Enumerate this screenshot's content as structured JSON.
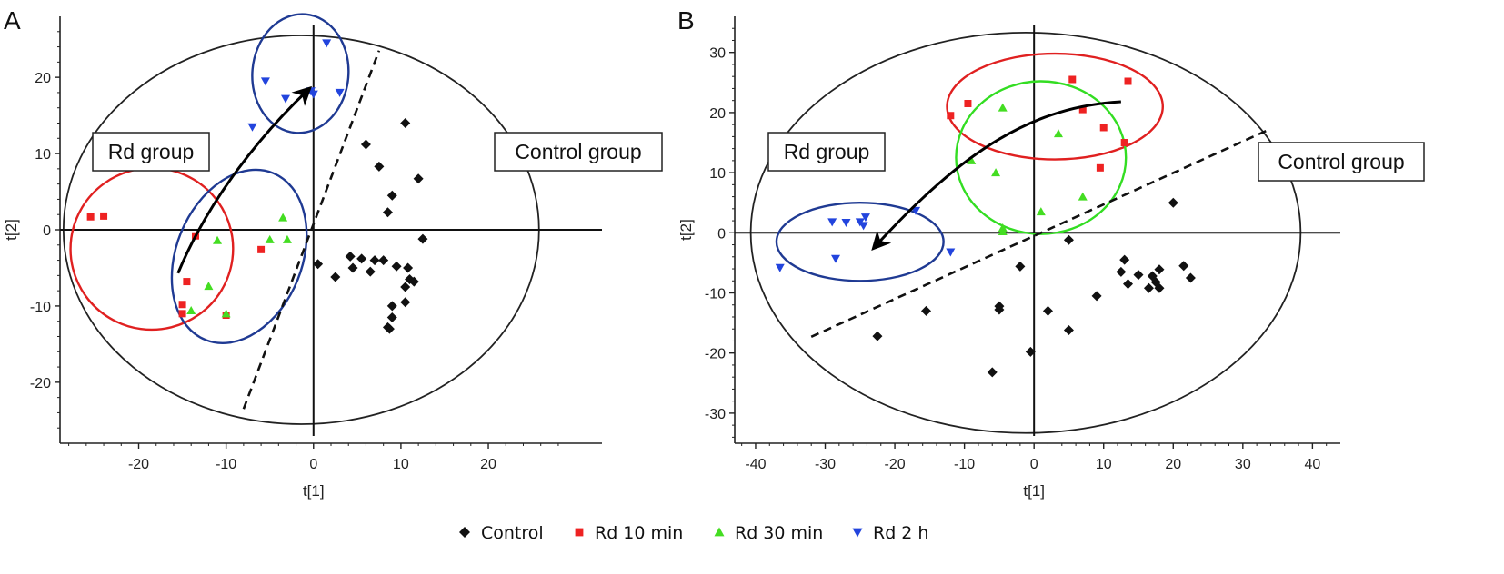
{
  "colors": {
    "control": "#111111",
    "rd10": "#ee2222",
    "rd30": "#44dd22",
    "rd2h": "#2244dd",
    "ellipse_red": "#e02020",
    "ellipse_green": "#33dd22",
    "ellipse_blue": "#1f3a93"
  },
  "legend": {
    "items": [
      {
        "key": "control",
        "label": "Control",
        "marker": "diamond"
      },
      {
        "key": "rd10",
        "label": "Rd 10 min",
        "marker": "square"
      },
      {
        "key": "rd30",
        "label": "Rd 30 min",
        "marker": "triangle-up"
      },
      {
        "key": "rd2h",
        "label": "Rd 2 h",
        "marker": "triangle-down"
      }
    ],
    "placement": "bottom"
  },
  "chart_data": [
    {
      "type": "scatter",
      "panel": "A",
      "xlabel": "t[1]",
      "ylabel": "t[2]",
      "xlim": [
        -29,
        33
      ],
      "ylim": [
        -28,
        28
      ],
      "xticks": [
        -20,
        -10,
        0,
        10,
        20
      ],
      "yticks": [
        -20,
        -10,
        0,
        10,
        20
      ],
      "annotations": [
        "Rd group",
        "Control group"
      ],
      "series": [
        {
          "key": "control",
          "name": "Control",
          "points": [
            [
              10.5,
              14
            ],
            [
              6,
              11.2
            ],
            [
              7.5,
              8.3
            ],
            [
              12,
              6.7
            ],
            [
              9,
              4.5
            ],
            [
              8.5,
              2.3
            ],
            [
              12.5,
              -1.2
            ],
            [
              0.5,
              -4.5
            ],
            [
              2.5,
              -6.2
            ],
            [
              4.2,
              -3.5
            ],
            [
              4.5,
              -5
            ],
            [
              5.5,
              -3.8
            ],
            [
              6.5,
              -5.5
            ],
            [
              7,
              -4
            ],
            [
              8,
              -4
            ],
            [
              9.5,
              -4.8
            ],
            [
              10.8,
              -5
            ],
            [
              11,
              -6.5
            ],
            [
              11.5,
              -6.8
            ],
            [
              10.5,
              -7.5
            ],
            [
              10.5,
              -9.5
            ],
            [
              9,
              -10
            ],
            [
              9,
              -11.5
            ],
            [
              8.5,
              -12.8
            ],
            [
              8.7,
              -13
            ]
          ]
        },
        {
          "key": "rd10",
          "name": "Rd 10 min",
          "points": [
            [
              -25.5,
              1.7
            ],
            [
              -24,
              1.8
            ],
            [
              -13.5,
              -0.8
            ],
            [
              -6,
              -2.6
            ],
            [
              -14.5,
              -6.8
            ],
            [
              -15,
              -9.8
            ],
            [
              -15,
              -11
            ],
            [
              -10,
              -11.2
            ]
          ]
        },
        {
          "key": "rd30",
          "name": "Rd 30 min",
          "points": [
            [
              -3.5,
              1.6
            ],
            [
              -11,
              -1.4
            ],
            [
              -5,
              -1.3
            ],
            [
              -3,
              -1.3
            ],
            [
              -12,
              -7.4
            ],
            [
              -14,
              -10.6
            ],
            [
              -10,
              -11
            ]
          ]
        },
        {
          "key": "rd2h",
          "name": "Rd 2 h",
          "points": [
            [
              1.5,
              24.5
            ],
            [
              -5.5,
              19.5
            ],
            [
              -0.3,
              18.2
            ],
            [
              0,
              17.8
            ],
            [
              3,
              18
            ],
            [
              -3.2,
              17.2
            ],
            [
              -1,
              17.5
            ],
            [
              -7,
              13.5
            ]
          ]
        }
      ],
      "ellipses": [
        {
          "color_key": "ellipse_red",
          "cx": -18.5,
          "cy": -2.5,
          "rx": 9.3,
          "ry": 10.6,
          "angle": -14
        },
        {
          "color_key": "ellipse_blue",
          "cx": -8.5,
          "cy": -3.5,
          "rx": 7.2,
          "ry": 11.8,
          "angle": 22
        },
        {
          "color_key": "ellipse_blue",
          "cx": -1.5,
          "cy": 20.5,
          "rx": 5.5,
          "ry": 7.8,
          "angle": 5
        }
      ],
      "arrow": {
        "points": [
          [
            -15.5,
            -5.7
          ],
          [
            -12,
            4
          ],
          [
            -6,
            12.5
          ],
          [
            -0.5,
            18.5
          ]
        ]
      },
      "separator": {
        "from": [
          -8,
          -23.5
        ],
        "to": [
          7.5,
          23.5
        ]
      },
      "hotelling_ellipse": {
        "cx": -1.4,
        "cy": 0,
        "rx": 27.2,
        "ry": 25.5
      }
    },
    {
      "type": "scatter",
      "panel": "B",
      "xlabel": "t[1]",
      "ylabel": "t[2]",
      "xlim": [
        -43,
        44
      ],
      "ylim": [
        -35,
        36
      ],
      "xticks": [
        -40,
        -30,
        -20,
        -10,
        0,
        10,
        20,
        30,
        40
      ],
      "yticks": [
        -30,
        -20,
        -10,
        0,
        10,
        20,
        30
      ],
      "annotations": [
        "Rd group",
        "Control group"
      ],
      "series": [
        {
          "key": "control",
          "name": "Control",
          "points": [
            [
              20,
              5
            ],
            [
              5,
              -1.2
            ],
            [
              -2,
              -5.6
            ],
            [
              2,
              -13
            ],
            [
              5,
              -16.2
            ],
            [
              9,
              -10.5
            ],
            [
              -0.5,
              -19.8
            ],
            [
              -6,
              -23.2
            ],
            [
              -5,
              -12.2
            ],
            [
              -5,
              -12.8
            ],
            [
              -15.5,
              -13
            ],
            [
              -22.5,
              -17.2
            ],
            [
              12.5,
              -6.5
            ],
            [
              13,
              -4.5
            ],
            [
              13.5,
              -8.5
            ],
            [
              15,
              -7
            ],
            [
              16.5,
              -9.2
            ],
            [
              17,
              -7.2
            ],
            [
              17.5,
              -8.2
            ],
            [
              18,
              -6.1
            ],
            [
              18,
              -9.2
            ],
            [
              21.5,
              -5.5
            ],
            [
              22.5,
              -7.5
            ]
          ]
        },
        {
          "key": "rd10",
          "name": "Rd 10 min",
          "points": [
            [
              5.5,
              25.5
            ],
            [
              13.5,
              25.2
            ],
            [
              -9.5,
              21.5
            ],
            [
              -12,
              19.5
            ],
            [
              7,
              20.5
            ],
            [
              10,
              17.5
            ],
            [
              13,
              15
            ],
            [
              9.5,
              10.8
            ]
          ]
        },
        {
          "key": "rd30",
          "name": "Rd 30 min",
          "points": [
            [
              -4.5,
              20.8
            ],
            [
              3.5,
              16.5
            ],
            [
              -9,
              12
            ],
            [
              -5.5,
              10
            ],
            [
              7,
              6
            ],
            [
              1,
              3.5
            ],
            [
              -4.5,
              0.8
            ],
            [
              -4.5,
              0.2
            ]
          ]
        },
        {
          "key": "rd2h",
          "name": "Rd 2 h",
          "points": [
            [
              -36.5,
              -5.8
            ],
            [
              -29,
              1.8
            ],
            [
              -27,
              1.7
            ],
            [
              -25,
              1.8
            ],
            [
              -24.2,
              2.6
            ],
            [
              -24.5,
              1.2
            ],
            [
              -17,
              3.7
            ],
            [
              -28.5,
              -4.3
            ],
            [
              -12,
              -3.2
            ]
          ]
        }
      ],
      "ellipses": [
        {
          "color_key": "ellipse_red",
          "cx": 3,
          "cy": 21,
          "rx": 15.5,
          "ry": 8.8,
          "angle": 0
        },
        {
          "color_key": "ellipse_green",
          "cx": 1,
          "cy": 12.5,
          "rx": 12.2,
          "ry": 12.7,
          "angle": 0
        },
        {
          "color_key": "ellipse_blue",
          "cx": -25,
          "cy": -1.5,
          "rx": 12,
          "ry": 6.5,
          "angle": 0
        }
      ],
      "arrow": {
        "points": [
          [
            12.5,
            21.8
          ],
          [
            0,
            21
          ],
          [
            -10,
            14
          ],
          [
            -23,
            -2.5
          ]
        ]
      },
      "separator": {
        "from": [
          -32,
          -17.3
        ],
        "to": [
          34,
          17.3
        ]
      },
      "hotelling_ellipse": {
        "cx": -1.2,
        "cy": 0,
        "rx": 39.5,
        "ry": 33.3
      }
    }
  ]
}
